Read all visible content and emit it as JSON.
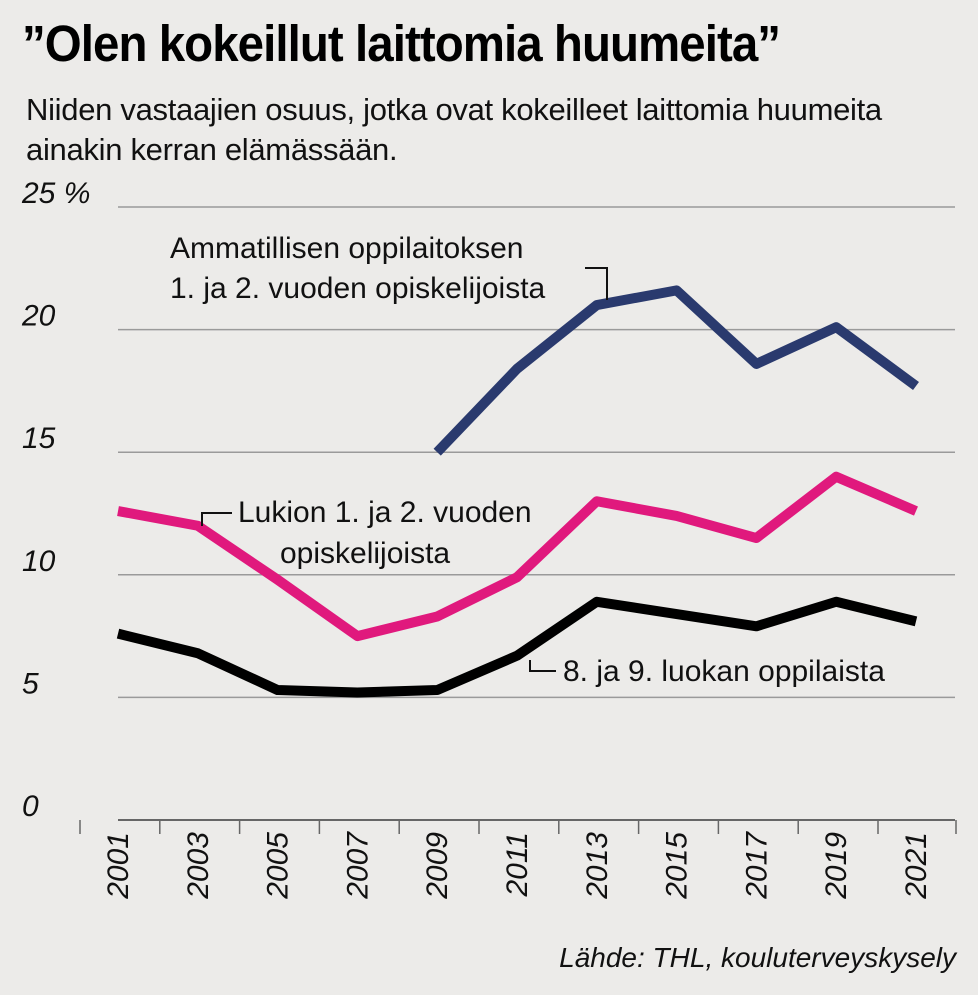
{
  "header": {
    "title": "”Olen kokeillut laittomia huumeita”",
    "subtitle": "Niiden vastaajien osuus, jotka ovat kokeilleet laittomia huumeita ainakin kerran elämässään."
  },
  "footer": {
    "source": "Lähde: THL, kouluterveyskysely"
  },
  "chart_data": {
    "type": "line",
    "title": "”Olen kokeillut laittomia huumeita”",
    "subtitle": "Niiden vastaajien osuus, jotka ovat kokeilleet laittomia huumeita ainakin kerran elämässään.",
    "xlabel": "",
    "ylabel": "",
    "x": [
      2001,
      2003,
      2005,
      2007,
      2009,
      2011,
      2013,
      2015,
      2017,
      2019,
      2021
    ],
    "x_tick_labels": [
      "2001",
      "2003",
      "2005",
      "2007",
      "2009",
      "2011",
      "2013",
      "2015",
      "2017",
      "2019",
      "2021"
    ],
    "ylim": [
      0,
      25
    ],
    "y_ticks": [
      0,
      5,
      10,
      15,
      20,
      25
    ],
    "y_tick_labels": [
      "0",
      "5",
      "10",
      "15",
      "20",
      "25 %"
    ],
    "grid": true,
    "series": [
      {
        "name": "Ammatillisen oppilaitoksen 1. ja 2. vuoden opiskelijoista",
        "label_lines": [
          "Ammatillisen oppilaitoksen",
          "1. ja 2. vuoden opiskelijoista"
        ],
        "color": "#2a3a6e",
        "values": [
          null,
          null,
          null,
          null,
          15.0,
          18.4,
          21.0,
          21.6,
          18.6,
          20.1,
          17.7
        ]
      },
      {
        "name": "Lukion 1. ja 2. vuoden opiskelijoista",
        "label_lines": [
          "Lukion 1. ja 2. vuoden",
          "opiskelijoista"
        ],
        "color": "#e0197d",
        "values": [
          12.6,
          12.0,
          9.8,
          7.5,
          8.3,
          9.9,
          13.0,
          12.4,
          11.5,
          14.0,
          12.6
        ]
      },
      {
        "name": "8. ja 9. luokan oppilaista",
        "label_lines": [
          "8. ja 9. luokan oppilaista"
        ],
        "color": "#000000",
        "values": [
          7.6,
          6.8,
          5.3,
          5.2,
          5.3,
          6.7,
          8.9,
          8.4,
          7.9,
          8.9,
          8.1
        ]
      }
    ]
  }
}
